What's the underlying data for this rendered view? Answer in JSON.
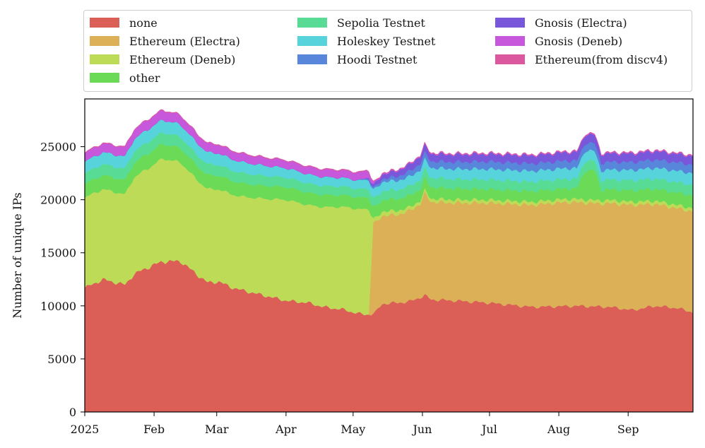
{
  "chart_data": {
    "type": "area",
    "stacked": true,
    "title": "",
    "xlabel": "",
    "ylabel": "Number of unique IPs",
    "ylim": [
      0,
      29500
    ],
    "yticks": [
      0,
      5000,
      10000,
      15000,
      20000,
      25000
    ],
    "x_domain_days": [
      0,
      272
    ],
    "xticks": [
      {
        "label": "2025",
        "day": 0
      },
      {
        "label": "Feb",
        "day": 31
      },
      {
        "label": "Mar",
        "day": 59
      },
      {
        "label": "Apr",
        "day": 90
      },
      {
        "label": "May",
        "day": 120
      },
      {
        "label": "Jun",
        "day": 151
      },
      {
        "label": "Jul",
        "day": 181
      },
      {
        "label": "Aug",
        "day": 212
      },
      {
        "label": "Sep",
        "day": 243
      }
    ],
    "legend_position": "top",
    "series": [
      {
        "name": "none",
        "color": "#db5f57",
        "points": [
          [
            0,
            11700
          ],
          [
            8,
            12500
          ],
          [
            18,
            12000
          ],
          [
            22,
            13000
          ],
          [
            30,
            13800
          ],
          [
            35,
            14200
          ],
          [
            43,
            14200
          ],
          [
            50,
            13000
          ],
          [
            55,
            12200
          ],
          [
            60,
            12300
          ],
          [
            65,
            11800
          ],
          [
            70,
            11500
          ],
          [
            80,
            11000
          ],
          [
            90,
            10500
          ],
          [
            100,
            10300
          ],
          [
            105,
            10000
          ],
          [
            110,
            9800
          ],
          [
            115,
            9700
          ],
          [
            120,
            9400
          ],
          [
            125,
            9200
          ],
          [
            128,
            9200
          ],
          [
            130,
            9400
          ],
          [
            133,
            10200
          ],
          [
            140,
            10300
          ],
          [
            145,
            10400
          ],
          [
            150,
            10800
          ],
          [
            152,
            11000
          ],
          [
            155,
            10600
          ],
          [
            165,
            10500
          ],
          [
            180,
            10300
          ],
          [
            200,
            9900
          ],
          [
            220,
            10000
          ],
          [
            235,
            9900
          ],
          [
            245,
            9600
          ],
          [
            255,
            10000
          ],
          [
            265,
            9800
          ],
          [
            272,
            9400
          ]
        ]
      },
      {
        "name": "Ethereum (Electra)",
        "color": "#dbb057",
        "points": [
          [
            0,
            0
          ],
          [
            127,
            0
          ],
          [
            129,
            8500
          ],
          [
            133,
            8300
          ],
          [
            140,
            8300
          ],
          [
            150,
            8800
          ],
          [
            152,
            9600
          ],
          [
            155,
            9200
          ],
          [
            165,
            9200
          ],
          [
            180,
            9400
          ],
          [
            200,
            9600
          ],
          [
            215,
            9800
          ],
          [
            230,
            9700
          ],
          [
            245,
            9900
          ],
          [
            255,
            9600
          ],
          [
            265,
            9400
          ],
          [
            272,
            9500
          ]
        ]
      },
      {
        "name": "Ethereum (Deneb)",
        "color": "#bddb57",
        "points": [
          [
            0,
            8500
          ],
          [
            18,
            8500
          ],
          [
            22,
            9100
          ],
          [
            30,
            9400
          ],
          [
            35,
            9700
          ],
          [
            43,
            9300
          ],
          [
            50,
            8900
          ],
          [
            55,
            8800
          ],
          [
            60,
            8700
          ],
          [
            70,
            8800
          ],
          [
            80,
            9100
          ],
          [
            90,
            9500
          ],
          [
            100,
            9200
          ],
          [
            110,
            9500
          ],
          [
            120,
            9800
          ],
          [
            127,
            9900
          ],
          [
            129,
            400
          ],
          [
            135,
            400
          ],
          [
            150,
            300
          ],
          [
            160,
            300
          ],
          [
            272,
            300
          ]
        ]
      },
      {
        "name": "other",
        "color": "#6bdb57",
        "points": [
          [
            0,
            1300
          ],
          [
            30,
            1400
          ],
          [
            60,
            1300
          ],
          [
            90,
            1200
          ],
          [
            120,
            1100
          ],
          [
            150,
            1100
          ],
          [
            180,
            1000
          ],
          [
            200,
            1000
          ],
          [
            220,
            1000
          ],
          [
            224,
            2800
          ],
          [
            228,
            2800
          ],
          [
            231,
            1000
          ],
          [
            250,
            1100
          ],
          [
            272,
            1200
          ]
        ]
      },
      {
        "name": "Sepolia Testnet",
        "color": "#57db95",
        "points": [
          [
            0,
            1000
          ],
          [
            30,
            1100
          ],
          [
            60,
            1000
          ],
          [
            90,
            900
          ],
          [
            120,
            800
          ],
          [
            150,
            900
          ],
          [
            180,
            900
          ],
          [
            220,
            900
          ],
          [
            272,
            1000
          ]
        ]
      },
      {
        "name": "Holeskey Testnet",
        "color": "#57d4db",
        "points": [
          [
            0,
            1100
          ],
          [
            30,
            1200
          ],
          [
            60,
            1100
          ],
          [
            90,
            900
          ],
          [
            120,
            800
          ],
          [
            150,
            900
          ],
          [
            180,
            1000
          ],
          [
            220,
            1000
          ],
          [
            230,
            900
          ],
          [
            272,
            1100
          ]
        ]
      },
      {
        "name": "Hoodi Testnet",
        "color": "#5786db",
        "points": [
          [
            0,
            0
          ],
          [
            120,
            0
          ],
          [
            130,
            200
          ],
          [
            150,
            600
          ],
          [
            180,
            700
          ],
          [
            220,
            700
          ],
          [
            272,
            800
          ]
        ]
      },
      {
        "name": "Gnosis (Electra)",
        "color": "#7857db",
        "points": [
          [
            0,
            0
          ],
          [
            125,
            0
          ],
          [
            131,
            400
          ],
          [
            150,
            700
          ],
          [
            180,
            700
          ],
          [
            220,
            800
          ],
          [
            272,
            800
          ]
        ]
      },
      {
        "name": "Gnosis (Deneb)",
        "color": "#c757db",
        "points": [
          [
            0,
            800
          ],
          [
            30,
            900
          ],
          [
            60,
            800
          ],
          [
            90,
            700
          ],
          [
            120,
            700
          ],
          [
            126,
            700
          ],
          [
            130,
            100
          ],
          [
            140,
            50
          ],
          [
            272,
            50
          ]
        ]
      },
      {
        "name": "Ethereum(from discv4)",
        "color": "#db579e",
        "points": [
          [
            0,
            60
          ],
          [
            272,
            60
          ]
        ]
      }
    ]
  }
}
